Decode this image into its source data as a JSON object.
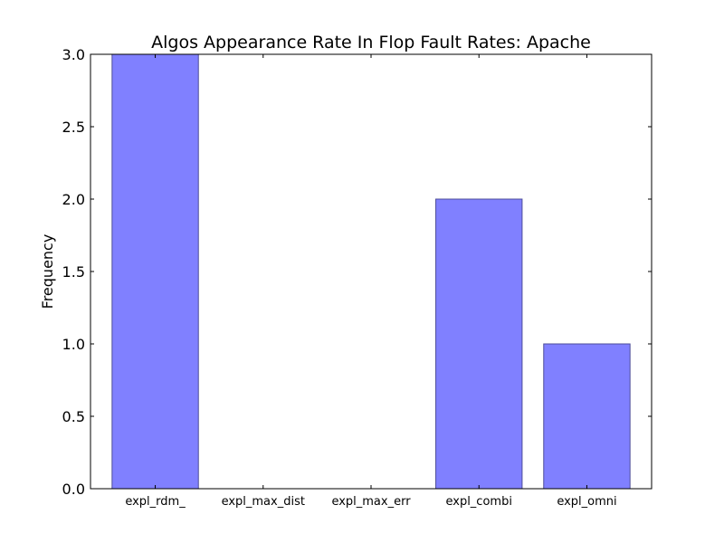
{
  "chart_data": {
    "type": "bar",
    "title": "Algos Appearance Rate In Flop Fault Rates: Apache",
    "xlabel": "",
    "ylabel": "Frequency",
    "categories": [
      "expl_rdm_",
      "expl_max_dist",
      "expl_max_err",
      "expl_combi",
      "expl_omni"
    ],
    "values": [
      3,
      0,
      0,
      2,
      1
    ],
    "ylim": [
      0,
      3.0
    ],
    "yticks": [
      "0.0",
      "0.5",
      "1.0",
      "1.5",
      "2.0",
      "2.5",
      "3.0"
    ],
    "bar_color": "#8080ff",
    "bar_edge_color": "#4d4d99",
    "grid": false,
    "legend": "none"
  }
}
